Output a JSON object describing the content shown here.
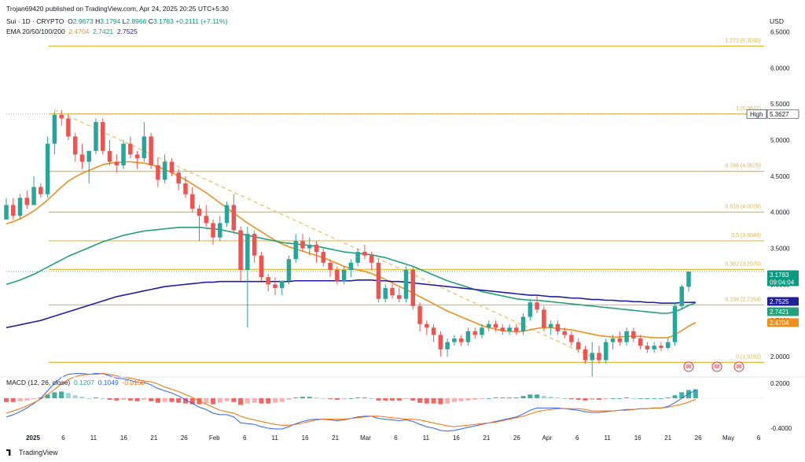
{
  "publisher": "Trojan69420 published on TradingView.com, Apr 24, 2025 20:25 UTC+5:30",
  "symbol": {
    "name": "Sui · 1D · CRYPTO",
    "o_label": "O",
    "o": "2.9673",
    "h_label": "H",
    "h": "3.1794",
    "l_label": "L",
    "l": "2.8966",
    "c_label": "C",
    "c": "3.1783",
    "change": "+0.2111 (+7.11%)"
  },
  "ema": {
    "label": "EMA 20/50/100/200",
    "v20": "2.4704",
    "v50": "2.7421",
    "v100": "2.7525"
  },
  "currency": "USD",
  "macd": {
    "label": "MACD (12, 26, close)",
    "hist": "0.1207",
    "macd": "0.1049",
    "signal": "-0.0158"
  },
  "branding": "TradingView",
  "colors": {
    "up": "#26a69a",
    "down": "#ef5350",
    "ema20": "#ef8f1c",
    "ema50": "#22a07a",
    "ema100": "#1e1e9e",
    "fib": "#e8b838",
    "macd": "#2962ff",
    "signal": "#ff6d00"
  },
  "chart_data": {
    "type": "candlestick",
    "symbol": "Sui",
    "interval": "1D",
    "ylim": [
      1.7,
      6.6
    ],
    "y_ticks": [
      "6.5000",
      "6.0000",
      "5.5000",
      "5.0000",
      "4.5000",
      "4.0000",
      "3.5000",
      "3.0000",
      "2.5000",
      "2.0000"
    ],
    "x_ticks": [
      "2025",
      "6",
      "11",
      "16",
      "21",
      "26",
      "Feb",
      "6",
      "11",
      "16",
      "21",
      "Mar",
      "6",
      "11",
      "16",
      "21",
      "26",
      "Apr",
      "6",
      "11",
      "16",
      "21",
      "26",
      "May",
      "6"
    ],
    "fib_levels": [
      {
        "label": "1.272 (6.3040)",
        "value": 6.304
      },
      {
        "label": "1 (5.3627)",
        "value": 5.3627
      },
      {
        "label": "0.786 (4.5675)",
        "value": 4.5675
      },
      {
        "label": "0.618 (4.0019)",
        "value": 4.0019
      },
      {
        "label": "0.5 (3.6044)",
        "value": 3.6044
      },
      {
        "label": "0.382 (3.2070)",
        "value": 3.207
      },
      {
        "label": "0.236 (2.7154)",
        "value": 2.7154
      },
      {
        "label": "0 (1.9192)",
        "value": 1.9192
      }
    ],
    "price_tags": [
      {
        "label": "High",
        "value": "5.3627"
      },
      {
        "label": "",
        "value": "3.1783",
        "sub": "09:04:04"
      },
      {
        "label": "",
        "value": "2.7525"
      },
      {
        "label": "",
        "value": "2.7421"
      },
      {
        "label": "",
        "value": "2.4704"
      }
    ],
    "candles_ohlc": [
      [
        3.9,
        4.2,
        3.9,
        4.1
      ],
      [
        4.1,
        4.2,
        3.9,
        3.95
      ],
      [
        3.95,
        4.25,
        3.9,
        4.2
      ],
      [
        4.2,
        4.3,
        4.05,
        4.1
      ],
      [
        4.1,
        4.5,
        4.1,
        4.35
      ],
      [
        4.35,
        4.4,
        4.2,
        4.25
      ],
      [
        4.25,
        5.05,
        4.2,
        4.95
      ],
      [
        4.95,
        5.4,
        4.8,
        5.35
      ],
      [
        5.35,
        5.42,
        5.2,
        5.3
      ],
      [
        5.3,
        5.36,
        5.0,
        5.05
      ],
      [
        5.05,
        5.1,
        4.7,
        4.8
      ],
      [
        4.8,
        4.95,
        4.6,
        4.7
      ],
      [
        4.7,
        4.75,
        4.4,
        4.85
      ],
      [
        4.85,
        5.3,
        4.8,
        5.25
      ],
      [
        5.25,
        5.3,
        4.8,
        4.85
      ],
      [
        4.85,
        5.0,
        4.65,
        4.7
      ],
      [
        4.7,
        4.8,
        4.55,
        4.65
      ],
      [
        4.65,
        5.0,
        4.6,
        4.95
      ],
      [
        4.95,
        5.05,
        4.75,
        4.8
      ],
      [
        4.8,
        4.85,
        4.6,
        4.75
      ],
      [
        4.75,
        5.25,
        4.7,
        5.05
      ],
      [
        5.05,
        5.1,
        4.6,
        4.65
      ],
      [
        4.65,
        4.75,
        4.35,
        4.45
      ],
      [
        4.45,
        4.8,
        4.4,
        4.7
      ],
      [
        4.7,
        4.75,
        4.5,
        4.55
      ],
      [
        4.55,
        4.6,
        4.3,
        4.4
      ],
      [
        4.4,
        4.5,
        4.2,
        4.25
      ],
      [
        4.25,
        4.35,
        4.0,
        4.05
      ],
      [
        4.05,
        4.1,
        3.6,
        3.95
      ],
      [
        3.95,
        4.1,
        3.8,
        3.85
      ],
      [
        3.85,
        3.9,
        3.55,
        3.65
      ],
      [
        3.65,
        3.95,
        3.6,
        3.85
      ],
      [
        3.85,
        4.15,
        3.8,
        4.1
      ],
      [
        4.1,
        4.25,
        3.7,
        3.75
      ],
      [
        3.75,
        3.8,
        3.05,
        3.2
      ],
      [
        3.2,
        3.8,
        2.4,
        3.7
      ],
      [
        3.7,
        3.75,
        3.3,
        3.4
      ],
      [
        3.4,
        3.45,
        3.05,
        3.1
      ],
      [
        3.1,
        3.15,
        2.9,
        3.0
      ],
      [
        3.0,
        3.1,
        2.85,
        2.95
      ],
      [
        2.95,
        3.05,
        2.85,
        3.05
      ],
      [
        3.05,
        3.4,
        3.0,
        3.35
      ],
      [
        3.35,
        3.7,
        3.3,
        3.6
      ],
      [
        3.6,
        3.7,
        3.45,
        3.5
      ],
      [
        3.5,
        3.65,
        3.4,
        3.55
      ],
      [
        3.55,
        3.6,
        3.3,
        3.45
      ],
      [
        3.45,
        3.5,
        3.25,
        3.3
      ],
      [
        3.3,
        3.35,
        3.1,
        3.2
      ],
      [
        3.2,
        3.25,
        3.0,
        3.05
      ],
      [
        3.05,
        3.25,
        3.0,
        3.2
      ],
      [
        3.2,
        3.35,
        3.1,
        3.3
      ],
      [
        3.3,
        3.5,
        3.25,
        3.45
      ],
      [
        3.45,
        3.55,
        3.35,
        3.4
      ],
      [
        3.4,
        3.45,
        3.2,
        3.3
      ],
      [
        3.3,
        3.35,
        2.75,
        2.8
      ],
      [
        2.8,
        3.0,
        2.75,
        2.95
      ],
      [
        2.95,
        3.0,
        2.8,
        2.85
      ],
      [
        2.85,
        2.95,
        2.75,
        2.8
      ],
      [
        2.8,
        3.25,
        2.75,
        3.2
      ],
      [
        3.2,
        3.25,
        2.65,
        2.7
      ],
      [
        2.7,
        2.75,
        2.35,
        2.45
      ],
      [
        2.45,
        2.5,
        2.3,
        2.4
      ],
      [
        2.4,
        2.45,
        2.2,
        2.3
      ],
      [
        2.3,
        2.35,
        2.0,
        2.1
      ],
      [
        2.1,
        2.25,
        2.0,
        2.2
      ],
      [
        2.2,
        2.3,
        2.15,
        2.25
      ],
      [
        2.25,
        2.3,
        2.15,
        2.2
      ],
      [
        2.2,
        2.4,
        2.15,
        2.35
      ],
      [
        2.35,
        2.4,
        2.25,
        2.3
      ],
      [
        2.3,
        2.45,
        2.25,
        2.4
      ],
      [
        2.4,
        2.5,
        2.35,
        2.45
      ],
      [
        2.45,
        2.5,
        2.35,
        2.4
      ],
      [
        2.4,
        2.45,
        2.3,
        2.35
      ],
      [
        2.35,
        2.45,
        2.3,
        2.4
      ],
      [
        2.4,
        2.45,
        2.3,
        2.35
      ],
      [
        2.35,
        2.6,
        2.3,
        2.55
      ],
      [
        2.55,
        2.8,
        2.5,
        2.75
      ],
      [
        2.75,
        2.85,
        2.6,
        2.65
      ],
      [
        2.65,
        2.7,
        2.35,
        2.4
      ],
      [
        2.4,
        2.5,
        2.3,
        2.45
      ],
      [
        2.45,
        2.5,
        2.3,
        2.35
      ],
      [
        2.35,
        2.4,
        2.25,
        2.3
      ],
      [
        2.3,
        2.35,
        2.15,
        2.2
      ],
      [
        2.2,
        2.25,
        2.05,
        2.1
      ],
      [
        2.1,
        2.15,
        1.9,
        1.95
      ],
      [
        1.95,
        2.2,
        1.72,
        2.05
      ],
      [
        2.05,
        2.15,
        1.9,
        1.95
      ],
      [
        1.95,
        2.25,
        1.9,
        2.2
      ],
      [
        2.2,
        2.3,
        2.1,
        2.25
      ],
      [
        2.25,
        2.35,
        2.15,
        2.2
      ],
      [
        2.2,
        2.4,
        2.15,
        2.35
      ],
      [
        2.35,
        2.4,
        2.2,
        2.25
      ],
      [
        2.25,
        2.3,
        2.1,
        2.15
      ],
      [
        2.15,
        2.2,
        2.05,
        2.1
      ],
      [
        2.1,
        2.2,
        2.05,
        2.15
      ],
      [
        2.15,
        2.2,
        2.08,
        2.12
      ],
      [
        2.12,
        2.25,
        2.1,
        2.2
      ],
      [
        2.2,
        2.75,
        2.15,
        2.7
      ],
      [
        2.7,
        3.0,
        2.65,
        2.97
      ],
      [
        2.9673,
        3.1794,
        2.8966,
        3.1783
      ]
    ],
    "series": [
      {
        "name": "EMA 20",
        "values": [
          3.84,
          3.87,
          3.91,
          3.96,
          4.02,
          4.09,
          4.17,
          4.26,
          4.35,
          4.43,
          4.49,
          4.54,
          4.58,
          4.62,
          4.66,
          4.68,
          4.69,
          4.7,
          4.7,
          4.69,
          4.68,
          4.66,
          4.63,
          4.59,
          4.55,
          4.5,
          4.45,
          4.39,
          4.33,
          4.27,
          4.2,
          4.13,
          4.06,
          3.99,
          3.92,
          3.85,
          3.79,
          3.73,
          3.67,
          3.61,
          3.56,
          3.52,
          3.49,
          3.46,
          3.43,
          3.4,
          3.37,
          3.33,
          3.29,
          3.25,
          3.22,
          3.2,
          3.18,
          3.15,
          3.11,
          3.07,
          3.02,
          2.97,
          2.93,
          2.88,
          2.83,
          2.78,
          2.73,
          2.68,
          2.63,
          2.59,
          2.55,
          2.51,
          2.47,
          2.43,
          2.4,
          2.38,
          2.36,
          2.35,
          2.34,
          2.35,
          2.37,
          2.39,
          2.4,
          2.4,
          2.39,
          2.38,
          2.37,
          2.35,
          2.33,
          2.31,
          2.29,
          2.28,
          2.27,
          2.27,
          2.28,
          2.28,
          2.28,
          2.27,
          2.26,
          2.26,
          2.26,
          2.3,
          2.36,
          2.42,
          2.4704
        ]
      },
      {
        "name": "EMA 50",
        "values": [
          3.0,
          3.03,
          3.06,
          3.1,
          3.14,
          3.19,
          3.24,
          3.29,
          3.34,
          3.39,
          3.43,
          3.47,
          3.51,
          3.55,
          3.59,
          3.62,
          3.65,
          3.68,
          3.7,
          3.72,
          3.74,
          3.75,
          3.76,
          3.77,
          3.78,
          3.79,
          3.79,
          3.79,
          3.79,
          3.78,
          3.77,
          3.76,
          3.74,
          3.72,
          3.7,
          3.68,
          3.66,
          3.64,
          3.62,
          3.6,
          3.58,
          3.57,
          3.56,
          3.55,
          3.54,
          3.53,
          3.51,
          3.49,
          3.47,
          3.45,
          3.44,
          3.43,
          3.42,
          3.41,
          3.39,
          3.37,
          3.34,
          3.31,
          3.28,
          3.25,
          3.21,
          3.17,
          3.13,
          3.09,
          3.05,
          3.02,
          2.99,
          2.96,
          2.93,
          2.9,
          2.88,
          2.86,
          2.84,
          2.82,
          2.8,
          2.79,
          2.78,
          2.78,
          2.77,
          2.76,
          2.75,
          2.74,
          2.73,
          2.72,
          2.71,
          2.7,
          2.69,
          2.68,
          2.67,
          2.66,
          2.65,
          2.64,
          2.63,
          2.62,
          2.61,
          2.6,
          2.6,
          2.62,
          2.66,
          2.71,
          2.7421
        ]
      },
      {
        "name": "EMA 100",
        "values": [
          2.4,
          2.42,
          2.44,
          2.46,
          2.48,
          2.5,
          2.53,
          2.56,
          2.59,
          2.62,
          2.65,
          2.68,
          2.71,
          2.74,
          2.77,
          2.8,
          2.83,
          2.85,
          2.87,
          2.89,
          2.91,
          2.93,
          2.95,
          2.97,
          2.98,
          2.99,
          3.0,
          3.01,
          3.02,
          3.03,
          3.03,
          3.04,
          3.04,
          3.04,
          3.04,
          3.04,
          3.04,
          3.04,
          3.04,
          3.04,
          3.04,
          3.04,
          3.05,
          3.05,
          3.05,
          3.05,
          3.05,
          3.05,
          3.05,
          3.05,
          3.05,
          3.06,
          3.06,
          3.06,
          3.05,
          3.05,
          3.04,
          3.04,
          3.03,
          3.02,
          3.01,
          3.0,
          2.99,
          2.98,
          2.97,
          2.96,
          2.95,
          2.94,
          2.93,
          2.92,
          2.91,
          2.9,
          2.89,
          2.88,
          2.87,
          2.86,
          2.85,
          2.85,
          2.84,
          2.83,
          2.83,
          2.82,
          2.81,
          2.81,
          2.8,
          2.79,
          2.79,
          2.78,
          2.78,
          2.77,
          2.77,
          2.76,
          2.76,
          2.75,
          2.75,
          2.74,
          2.74,
          2.74,
          2.75,
          2.75,
          2.7525
        ]
      }
    ],
    "macd_hist": [
      -0.05,
      -0.05,
      -0.04,
      -0.03,
      -0.01,
      0.01,
      0.05,
      0.08,
      0.09,
      0.07,
      0.04,
      0.02,
      0.0,
      0.01,
      0.0,
      -0.02,
      -0.03,
      -0.02,
      -0.03,
      -0.04,
      -0.02,
      -0.04,
      -0.06,
      -0.05,
      -0.05,
      -0.06,
      -0.07,
      -0.08,
      -0.08,
      -0.07,
      -0.08,
      -0.06,
      -0.04,
      -0.05,
      -0.09,
      -0.07,
      -0.06,
      -0.07,
      -0.07,
      -0.06,
      -0.05,
      -0.02,
      0.01,
      0.02,
      0.02,
      0.01,
      0.0,
      -0.01,
      -0.02,
      -0.01,
      0.0,
      0.01,
      0.01,
      0.0,
      -0.03,
      -0.03,
      -0.03,
      -0.03,
      -0.01,
      -0.03,
      -0.06,
      -0.07,
      -0.07,
      -0.08,
      -0.07,
      -0.05,
      -0.04,
      -0.03,
      -0.02,
      -0.01,
      0.0,
      0.01,
      0.01,
      0.01,
      0.01,
      0.03,
      0.05,
      0.05,
      0.03,
      0.02,
      0.01,
      0.0,
      -0.01,
      -0.02,
      -0.03,
      -0.02,
      -0.02,
      -0.01,
      0.0,
      0.0,
      0.01,
      0.0,
      0.0,
      0.0,
      0.0,
      0.0,
      0.01,
      0.04,
      0.08,
      0.11,
      0.1207
    ],
    "macd_line": [
      -0.25,
      -0.22,
      -0.18,
      -0.13,
      -0.07,
      0.0,
      0.1,
      0.2,
      0.28,
      0.32,
      0.33,
      0.33,
      0.32,
      0.33,
      0.33,
      0.3,
      0.27,
      0.26,
      0.24,
      0.21,
      0.21,
      0.18,
      0.13,
      0.1,
      0.07,
      0.03,
      -0.02,
      -0.07,
      -0.12,
      -0.15,
      -0.2,
      -0.22,
      -0.22,
      -0.25,
      -0.33,
      -0.34,
      -0.35,
      -0.38,
      -0.4,
      -0.41,
      -0.41,
      -0.38,
      -0.34,
      -0.31,
      -0.29,
      -0.28,
      -0.28,
      -0.29,
      -0.3,
      -0.29,
      -0.27,
      -0.25,
      -0.24,
      -0.24,
      -0.27,
      -0.28,
      -0.29,
      -0.3,
      -0.29,
      -0.31,
      -0.35,
      -0.38,
      -0.4,
      -0.43,
      -0.44,
      -0.43,
      -0.41,
      -0.39,
      -0.37,
      -0.35,
      -0.33,
      -0.31,
      -0.29,
      -0.27,
      -0.25,
      -0.21,
      -0.16,
      -0.13,
      -0.13,
      -0.13,
      -0.13,
      -0.14,
      -0.15,
      -0.16,
      -0.18,
      -0.19,
      -0.19,
      -0.18,
      -0.17,
      -0.16,
      -0.15,
      -0.15,
      -0.14,
      -0.14,
      -0.13,
      -0.13,
      -0.11,
      -0.06,
      0.0,
      0.06,
      0.1049
    ],
    "signal_line": [
      -0.2,
      -0.17,
      -0.14,
      -0.1,
      -0.06,
      -0.01,
      0.05,
      0.12,
      0.19,
      0.25,
      0.29,
      0.31,
      0.32,
      0.32,
      0.33,
      0.32,
      0.3,
      0.28,
      0.27,
      0.25,
      0.23,
      0.22,
      0.19,
      0.15,
      0.12,
      0.09,
      0.05,
      0.01,
      -0.04,
      -0.08,
      -0.12,
      -0.16,
      -0.18,
      -0.2,
      -0.24,
      -0.27,
      -0.29,
      -0.31,
      -0.33,
      -0.35,
      -0.36,
      -0.36,
      -0.35,
      -0.33,
      -0.31,
      -0.29,
      -0.28,
      -0.28,
      -0.28,
      -0.28,
      -0.27,
      -0.26,
      -0.25,
      -0.24,
      -0.24,
      -0.25,
      -0.26,
      -0.27,
      -0.28,
      -0.28,
      -0.29,
      -0.31,
      -0.33,
      -0.35,
      -0.37,
      -0.38,
      -0.37,
      -0.36,
      -0.35,
      -0.34,
      -0.33,
      -0.32,
      -0.3,
      -0.28,
      -0.26,
      -0.24,
      -0.21,
      -0.18,
      -0.16,
      -0.15,
      -0.14,
      -0.14,
      -0.14,
      -0.14,
      -0.15,
      -0.17,
      -0.17,
      -0.17,
      -0.17,
      -0.16,
      -0.16,
      -0.15,
      -0.14,
      -0.14,
      -0.13,
      -0.13,
      -0.12,
      -0.1,
      -0.08,
      -0.05,
      -0.0158
    ],
    "macd_ticks": [
      "0.2000",
      "-0.4000"
    ]
  }
}
